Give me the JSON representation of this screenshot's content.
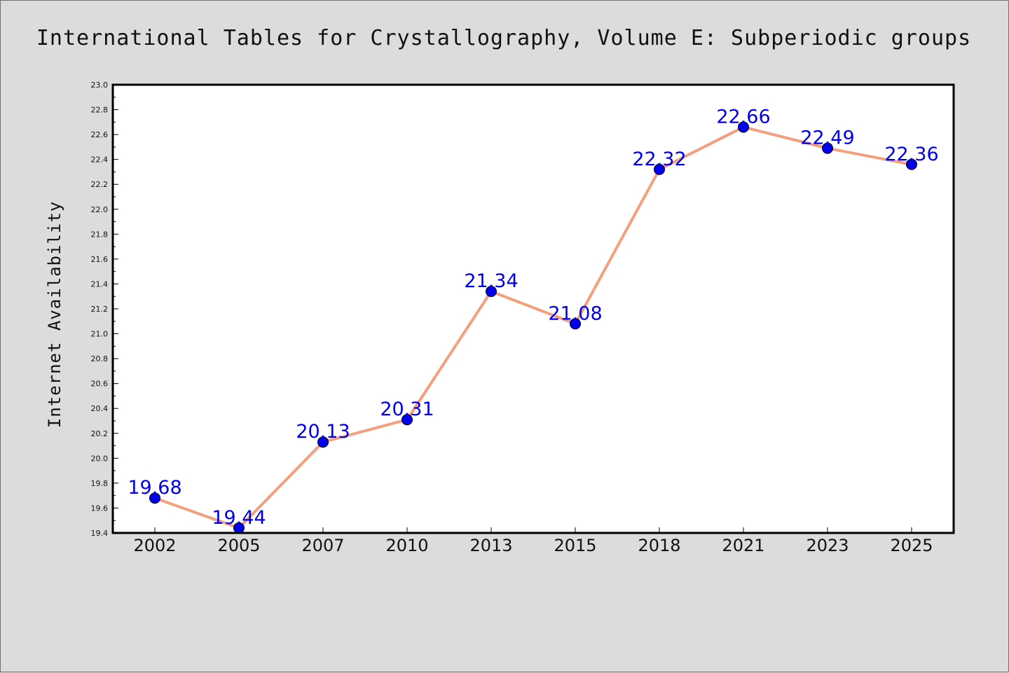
{
  "chart_data": {
    "type": "line",
    "title": "International Tables for Crystallography, Volume E: Subperiodic groups",
    "xlabel": "",
    "ylabel": "Internet Availability",
    "categories": [
      "2002",
      "2005",
      "2007",
      "2010",
      "2013",
      "2015",
      "2018",
      "2021",
      "2023",
      "2025"
    ],
    "series": [
      {
        "values": [
          19.68,
          19.44,
          20.13,
          20.31,
          21.34,
          21.08,
          22.32,
          22.66,
          22.49,
          22.36
        ],
        "labels": [
          "19.68",
          "19.44",
          "20.13",
          "20.31",
          "21.34",
          "21.08",
          "22.32",
          "22.66",
          "22.49",
          "22.36"
        ]
      }
    ],
    "ylim": [
      19.4,
      23.0
    ],
    "yticks": [
      "19.4",
      "19.6",
      "19.8",
      "20.0",
      "20.2",
      "20.4",
      "20.6",
      "20.8",
      "21.0",
      "21.2",
      "21.4",
      "21.6",
      "21.8",
      "22.0",
      "22.2",
      "22.4",
      "22.6",
      "22.8",
      "23.0"
    ],
    "grid": false,
    "legend": "none",
    "colors": {
      "line": "#f4a07e",
      "marker": "#0000ee",
      "data_label": "#0000ee",
      "plot_background": "#ffffff",
      "figure_background": "#dcdcdc"
    }
  }
}
